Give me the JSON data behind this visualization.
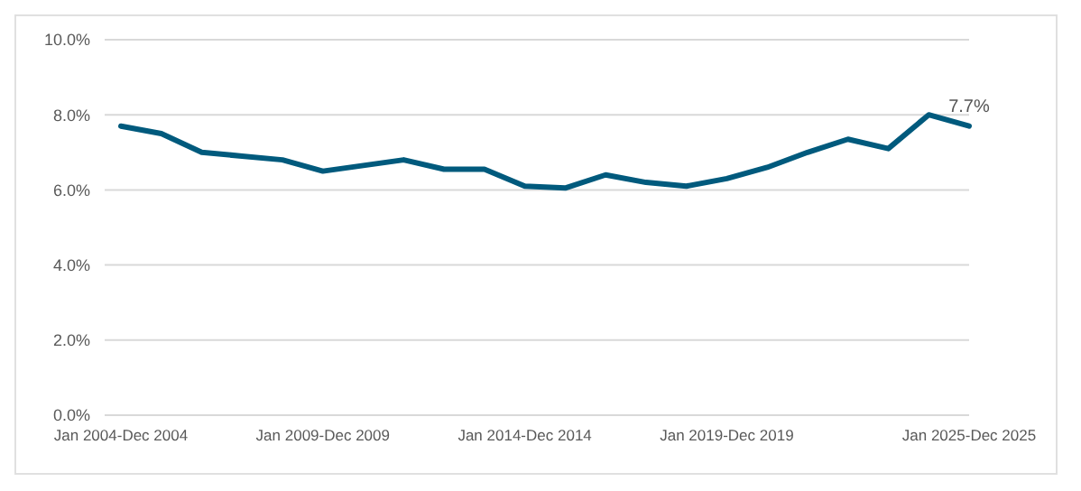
{
  "chart_data": {
    "type": "line",
    "categories": [
      "Jan 2004-Dec 2004",
      null,
      null,
      null,
      null,
      "Jan 2009-Dec 2009",
      null,
      null,
      null,
      null,
      "Jan 2014-Dec 2014",
      null,
      null,
      null,
      null,
      "Jan 2019-Dec 2019",
      null,
      null,
      null,
      null,
      null,
      "Jan 2025-Dec 2025"
    ],
    "series": [
      {
        "color": "#005a7d",
        "values": [
          7.7,
          7.5,
          7.0,
          6.9,
          6.8,
          6.5,
          6.65,
          6.8,
          6.55,
          6.55,
          6.1,
          6.05,
          6.4,
          6.2,
          6.1,
          6.3,
          6.6,
          7.0,
          7.35,
          7.1,
          8.0,
          7.7
        ],
        "value_labels": [
          null,
          null,
          null,
          null,
          null,
          null,
          null,
          null,
          null,
          null,
          null,
          null,
          null,
          null,
          null,
          null,
          null,
          null,
          null,
          null,
          null,
          "7.7%"
        ]
      }
    ],
    "ylim": [
      0,
      10
    ],
    "yticks": [
      {
        "value": 0,
        "label": "0.0%"
      },
      {
        "value": 2,
        "label": "2.0%"
      },
      {
        "value": 4,
        "label": "4.0%"
      },
      {
        "value": 6,
        "label": "6.0%"
      },
      {
        "value": 8,
        "label": "8.0%"
      },
      {
        "value": 10,
        "label": "10.0%"
      }
    ],
    "grid": "y",
    "marker": "none",
    "line_style": "solid"
  }
}
